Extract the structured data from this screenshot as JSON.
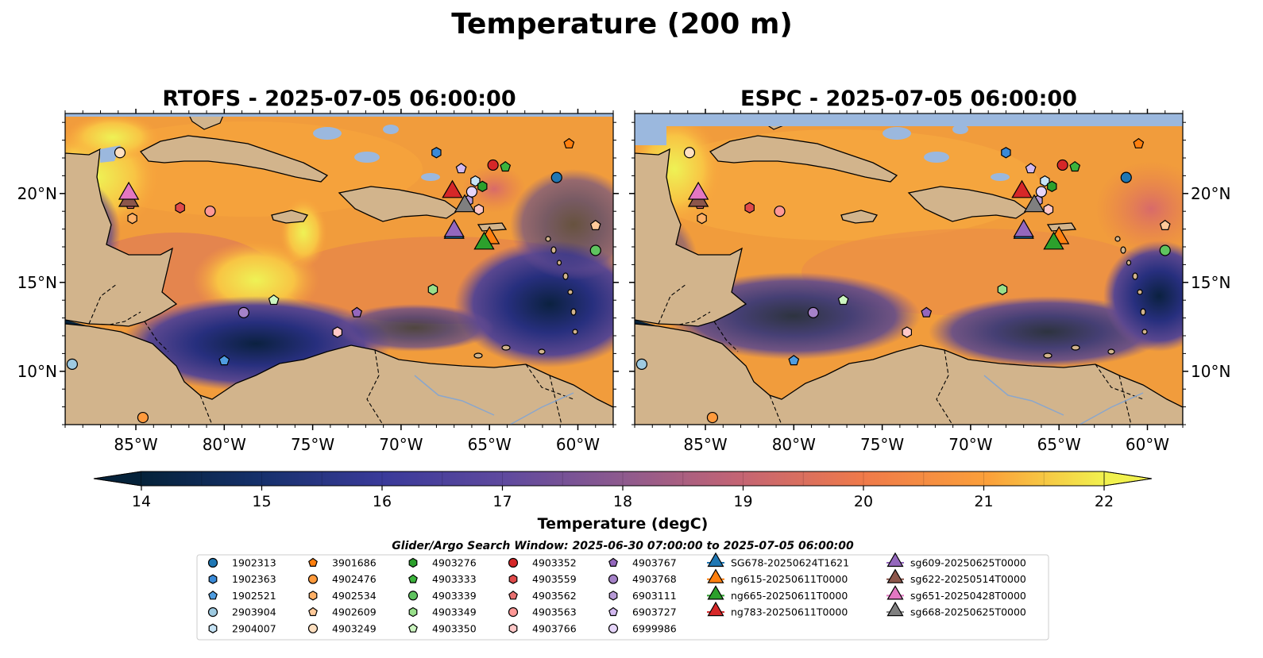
{
  "title": "Temperature (200 m)",
  "panels": [
    {
      "name": "rtofs",
      "title": "RTOFS - 2025-07-05 06:00:00"
    },
    {
      "name": "espc",
      "title": "ESPC - 2025-07-05 06:00:00"
    }
  ],
  "map": {
    "lon_range": [
      -89,
      -58
    ],
    "lat_range": [
      7,
      24.5
    ],
    "lon_ticks": [
      -85,
      -80,
      -75,
      -70,
      -65,
      -60
    ],
    "lon_tick_labels": [
      "85°W",
      "80°W",
      "75°W",
      "70°W",
      "65°W",
      "60°W"
    ],
    "lat_ticks": [
      10,
      15,
      20
    ],
    "lat_tick_labels": [
      "10°N",
      "15°N",
      "20°N"
    ],
    "colors": {
      "land": "#d2b48c",
      "water_mask": "#9bb8de",
      "border": "#000000"
    }
  },
  "colorbar": {
    "min": 14,
    "max": 22,
    "step": 0.5,
    "ticks": [
      "14",
      "15",
      "16",
      "17",
      "18",
      "19",
      "20",
      "21",
      "22"
    ],
    "label": "Temperature (degC)",
    "colormap": "thermal",
    "extend": "both"
  },
  "search_window": "Glider/Argo Search Window: 2025-06-30 07:00:00 to 2025-07-05 06:00:00",
  "legend": {
    "columns": [
      [
        {
          "label": "1902313",
          "marker": "circle",
          "color": "#1f77b4"
        },
        {
          "label": "1902363",
          "marker": "hexagon",
          "color": "#3a8ad8"
        },
        {
          "label": "1902521",
          "marker": "pentagon",
          "color": "#4f9de0"
        },
        {
          "label": "2903904",
          "marker": "circle",
          "color": "#9ecae1"
        },
        {
          "label": "2904007",
          "marker": "hexagon",
          "color": "#c6e3f5"
        }
      ],
      [
        {
          "label": "3901686",
          "marker": "pentagon",
          "color": "#ff7f0e"
        },
        {
          "label": "4902476",
          "marker": "circle",
          "color": "#ff9a3c"
        },
        {
          "label": "4902534",
          "marker": "hexagon",
          "color": "#ffb066"
        },
        {
          "label": "4902609",
          "marker": "pentagon",
          "color": "#ffc999"
        },
        {
          "label": "4903249",
          "marker": "circle",
          "color": "#ffe0c0"
        }
      ],
      [
        {
          "label": "4903276",
          "marker": "hexagon",
          "color": "#2ca02c"
        },
        {
          "label": "4903333",
          "marker": "pentagon",
          "color": "#3cb43c"
        },
        {
          "label": "4903339",
          "marker": "circle",
          "color": "#5fc35f"
        },
        {
          "label": "4903349",
          "marker": "hexagon",
          "color": "#98df8a"
        },
        {
          "label": "4903350",
          "marker": "pentagon",
          "color": "#ccf5c0"
        }
      ],
      [
        {
          "label": "4903352",
          "marker": "circle",
          "color": "#d62728"
        },
        {
          "label": "4903559",
          "marker": "hexagon",
          "color": "#e04a4a"
        },
        {
          "label": "4903562",
          "marker": "pentagon",
          "color": "#e87070"
        },
        {
          "label": "4903563",
          "marker": "circle",
          "color": "#ff9896"
        },
        {
          "label": "4903766",
          "marker": "hexagon",
          "color": "#ffc8c8"
        }
      ],
      [
        {
          "label": "4903767",
          "marker": "pentagon",
          "color": "#9467bd"
        },
        {
          "label": "4903768",
          "marker": "circle",
          "color": "#a582c8"
        },
        {
          "label": "6903111",
          "marker": "hexagon",
          "color": "#b79ad6"
        },
        {
          "label": "6903727",
          "marker": "pentagon",
          "color": "#d3b9f0"
        },
        {
          "label": "6999986",
          "marker": "circle",
          "color": "#e6d5fa"
        }
      ],
      [
        {
          "label": "SG678-20250624T1621",
          "marker": "triangle",
          "color": "#1f77b4"
        },
        {
          "label": "ng615-20250611T0000",
          "marker": "triangle",
          "color": "#ff7f0e"
        },
        {
          "label": "ng665-20250611T0000",
          "marker": "triangle",
          "color": "#2ca02c"
        },
        {
          "label": "ng783-20250611T0000",
          "marker": "triangle",
          "color": "#d62728"
        }
      ],
      [
        {
          "label": "sg609-20250625T0000",
          "marker": "triangle",
          "color": "#9467bd"
        },
        {
          "label": "sg622-20250514T0000",
          "marker": "triangle",
          "color": "#8c564b"
        },
        {
          "label": "sg651-20250428T0000",
          "marker": "triangle",
          "color": "#e377c2"
        },
        {
          "label": "sg668-20250625T0000",
          "marker": "triangle",
          "color": "#7f7f7f"
        }
      ]
    ]
  },
  "floats": [
    {
      "label": "1902313",
      "lon": -61.2,
      "lat": 20.9
    },
    {
      "label": "1902363",
      "lon": -68.0,
      "lat": 22.3
    },
    {
      "label": "1902521",
      "lon": -80.0,
      "lat": 10.6
    },
    {
      "label": "2903904",
      "lon": -88.6,
      "lat": 10.4
    },
    {
      "label": "2904007",
      "lon": -65.8,
      "lat": 20.7
    },
    {
      "label": "3901686",
      "lon": -60.5,
      "lat": 22.8
    },
    {
      "label": "4902476",
      "lon": -84.6,
      "lat": 7.4
    },
    {
      "label": "4902534",
      "lon": -85.2,
      "lat": 18.6
    },
    {
      "label": "4902609",
      "lon": -59.0,
      "lat": 18.2
    },
    {
      "label": "4903249",
      "lon": -85.9,
      "lat": 22.3
    },
    {
      "label": "4903276",
      "lon": -65.4,
      "lat": 20.4
    },
    {
      "label": "4903333",
      "lon": -64.1,
      "lat": 21.5
    },
    {
      "label": "4903339",
      "lon": -59.0,
      "lat": 16.8
    },
    {
      "label": "4903349",
      "lon": -68.2,
      "lat": 14.6
    },
    {
      "label": "4903350",
      "lon": -77.2,
      "lat": 14.0
    },
    {
      "label": "4903352",
      "lon": -64.8,
      "lat": 21.6
    },
    {
      "label": "4903559",
      "lon": -82.5,
      "lat": 19.2
    },
    {
      "label": "4903562",
      "lon": -85.3,
      "lat": 19.4
    },
    {
      "label": "4903563",
      "lon": -80.8,
      "lat": 19.0
    },
    {
      "label": "4903766",
      "lon": -65.6,
      "lat": 19.1
    },
    {
      "label": "4903767",
      "lon": -72.5,
      "lat": 13.3
    },
    {
      "label": "4903768",
      "lon": -78.9,
      "lat": 13.3
    },
    {
      "label": "6903111",
      "lon": -66.2,
      "lat": 19.6
    },
    {
      "label": "6903727",
      "lon": -66.6,
      "lat": 21.4
    },
    {
      "label": "6999986",
      "lon": -66.0,
      "lat": 20.1
    },
    {
      "label": "4903766",
      "lon": -73.6,
      "lat": 12.2
    }
  ],
  "gliders": [
    {
      "label": "SG678-20250624T1621",
      "lon": -67.0,
      "lat": 17.7
    },
    {
      "label": "ng615-20250611T0000",
      "lon": -65.0,
      "lat": 17.4
    },
    {
      "label": "ng665-20250611T0000",
      "lon": -65.3,
      "lat": 17.1
    },
    {
      "label": "ng783-20250611T0000",
      "lon": -67.1,
      "lat": 20.0
    },
    {
      "label": "sg609-20250625T0000",
      "lon": -67.0,
      "lat": 17.8
    },
    {
      "label": "sg622-20250514T0000",
      "lon": -85.4,
      "lat": 19.5
    },
    {
      "label": "sg651-20250428T0000",
      "lon": -85.4,
      "lat": 19.9
    },
    {
      "label": "sg668-20250625T0000",
      "lon": -66.4,
      "lat": 19.2
    }
  ]
}
